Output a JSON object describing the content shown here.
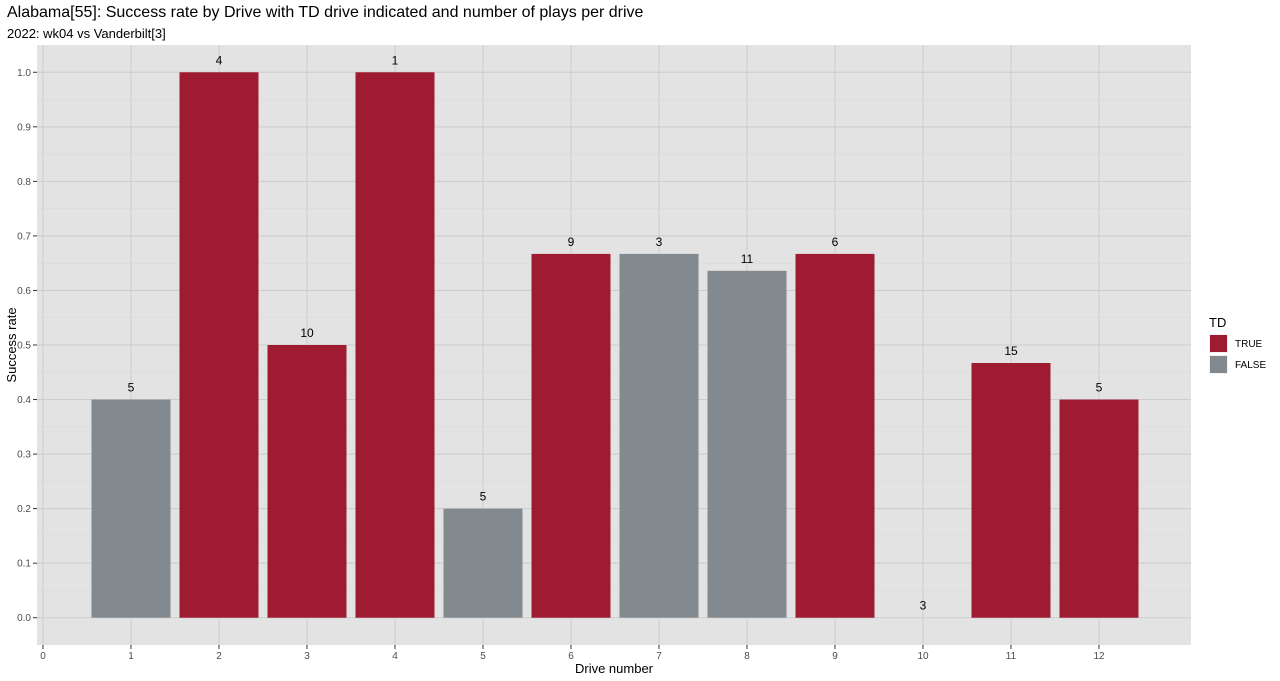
{
  "title": "Alabama[55]: Success rate by Drive with TD drive indicated and number of plays per drive",
  "subtitle": "2022: wk04 vs Vanderbilt[3]",
  "chart_data": {
    "type": "bar",
    "x_label": "Drive number",
    "y_label": "Success rate",
    "x_ticks": [
      0,
      1,
      2,
      3,
      4,
      5,
      6,
      7,
      8,
      9,
      10,
      11,
      12
    ],
    "y_ticks": [
      0.0,
      0.1,
      0.2,
      0.3,
      0.4,
      0.5,
      0.6,
      0.7,
      0.8,
      0.9,
      1.0
    ],
    "y_tick_labels": [
      "0.0",
      "0.1",
      "0.2",
      "0.3",
      "0.4",
      "0.5",
      "0.6",
      "0.7",
      "0.8",
      "0.9",
      "1.0"
    ],
    "xlim": [
      0,
      13
    ],
    "ylim": [
      -0.05,
      1.05
    ],
    "grid": true,
    "legend": {
      "title": "TD",
      "position": "right",
      "entries": [
        {
          "label": "TRUE",
          "color": "#9e1b32"
        },
        {
          "label": "FALSE",
          "color": "#828a8f"
        }
      ]
    },
    "bars": [
      {
        "drive": 1,
        "success_rate": 0.4,
        "td": false,
        "plays": 5
      },
      {
        "drive": 2,
        "success_rate": 1.0,
        "td": true,
        "plays": 4
      },
      {
        "drive": 3,
        "success_rate": 0.5,
        "td": true,
        "plays": 10
      },
      {
        "drive": 4,
        "success_rate": 1.0,
        "td": true,
        "plays": 1
      },
      {
        "drive": 5,
        "success_rate": 0.2,
        "td": false,
        "plays": 5
      },
      {
        "drive": 6,
        "success_rate": 0.667,
        "td": true,
        "plays": 9
      },
      {
        "drive": 7,
        "success_rate": 0.667,
        "td": false,
        "plays": 3
      },
      {
        "drive": 8,
        "success_rate": 0.636,
        "td": false,
        "plays": 11
      },
      {
        "drive": 9,
        "success_rate": 0.667,
        "td": true,
        "plays": 6
      },
      {
        "drive": 10,
        "success_rate": 0.0,
        "td": false,
        "plays": 3
      },
      {
        "drive": 11,
        "success_rate": 0.467,
        "td": true,
        "plays": 15
      },
      {
        "drive": 12,
        "success_rate": 0.4,
        "td": true,
        "plays": 5
      }
    ],
    "colors": {
      "panel_background": "#e3e3e3",
      "grid_line": "#cccccc",
      "td_true": "#9e1b32",
      "td_false": "#828a8f"
    }
  }
}
